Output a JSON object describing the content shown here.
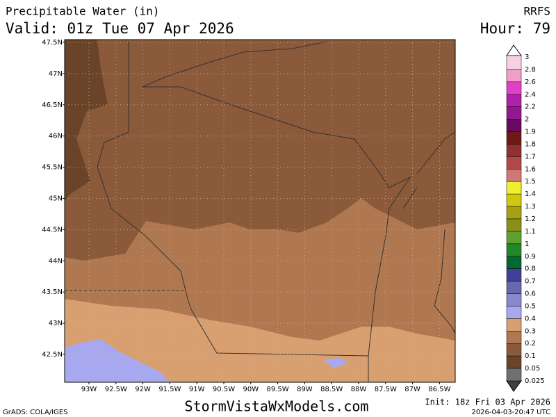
{
  "header": {
    "title": "Precipitable Water (in)",
    "valid": "Valid: 01z Tue 07 Apr 2026",
    "model": "RRFS",
    "hour": "Hour: 79"
  },
  "map": {
    "lat_labels": [
      "47.5N",
      "47N",
      "46.5N",
      "46N",
      "45.5N",
      "45N",
      "44.5N",
      "44N",
      "43.5N",
      "43N",
      "42.5N"
    ],
    "lon_labels": [
      "93W",
      "92.5W",
      "92W",
      "91.5W",
      "91W",
      "90.5W",
      "90W",
      "89.5W",
      "89W",
      "88.5W",
      "88W",
      "87.5W",
      "87W",
      "86.5W"
    ]
  },
  "colorbar": {
    "labels": [
      "3",
      "2.8",
      "2.6",
      "2.4",
      "2.2",
      "2",
      "1.9",
      "1.8",
      "1.7",
      "1.6",
      "1.5",
      "1.4",
      "1.3",
      "1.2",
      "1.1",
      "1",
      "0.9",
      "0.8",
      "0.7",
      "0.6",
      "0.5",
      "0.4",
      "0.3",
      "0.2",
      "0.1",
      "0.05",
      "0.025"
    ],
    "colors": [
      "#f8d0e4",
      "#f0a0c8",
      "#e040c8",
      "#b020a8",
      "#901890",
      "#680a60",
      "#701818",
      "#903030",
      "#b04848",
      "#d07878",
      "#f0f030",
      "#d0c810",
      "#a8a010",
      "#889018",
      "#60a030",
      "#208828",
      "#006830",
      "#404098",
      "#6868b0",
      "#8888cc",
      "#a8a8f0",
      "#d8a070",
      "#b07850",
      "#8a5a3a",
      "#6a4428",
      "#707070"
    ]
  },
  "footer": {
    "credit": "GrADS: COLA/IGES",
    "site": "StormVistaWxModels.com",
    "init": "Init: 18z Fri 03 Apr 2026",
    "stamp": "2026-04-03-20:47 UTC"
  }
}
